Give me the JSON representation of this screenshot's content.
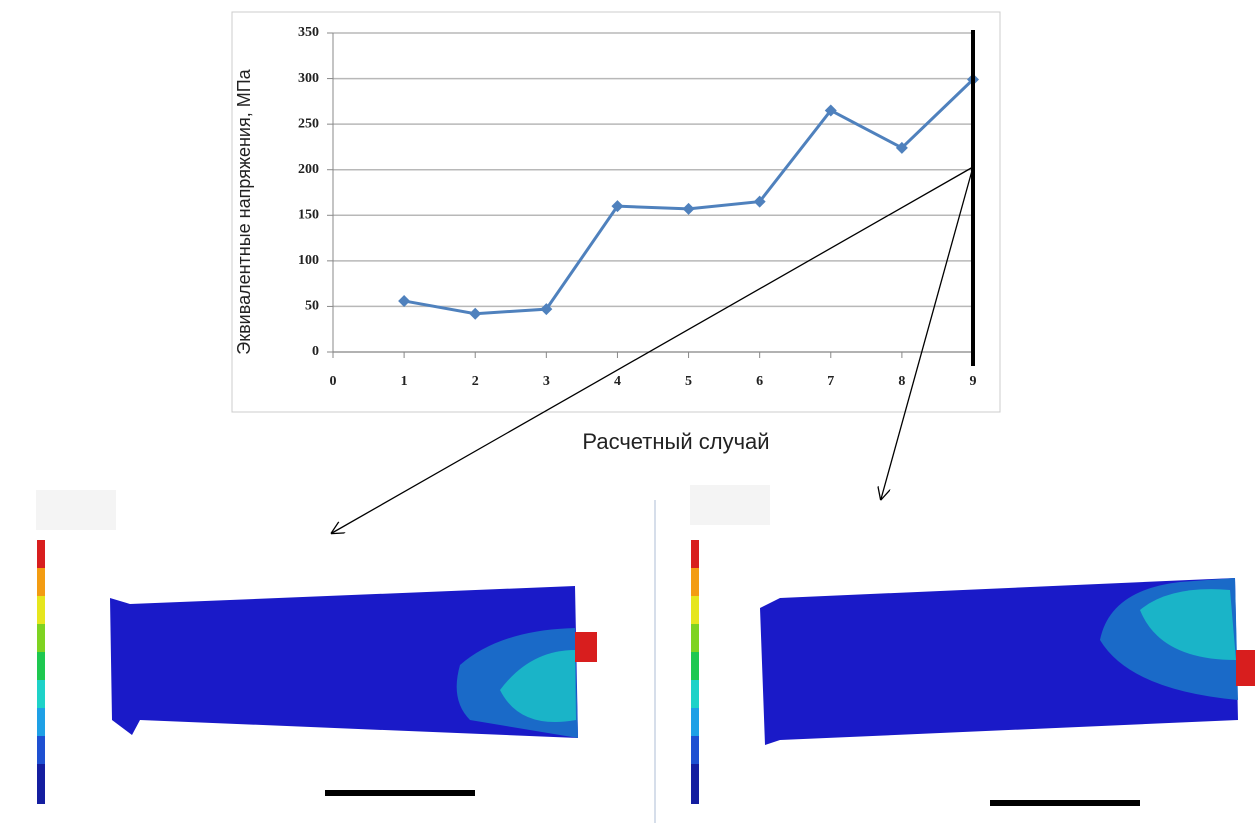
{
  "chart_data": {
    "type": "line",
    "x_axis_label": "Расчетный случай",
    "y_axis_label": "Эквивалентные напряжения, МПа",
    "x": [
      1,
      2,
      3,
      4,
      5,
      6,
      7,
      8,
      9
    ],
    "values": [
      56,
      42,
      47,
      160,
      157,
      165,
      265,
      224,
      299
    ],
    "color": "#4f81bd",
    "xlim": [
      0,
      9
    ],
    "xticks": [
      0,
      1,
      2,
      3,
      4,
      5,
      6,
      7,
      8,
      9
    ],
    "ylim": [
      0,
      350
    ],
    "yticks": [
      0,
      50,
      100,
      150,
      200,
      250,
      300,
      350
    ],
    "grid": true
  }
}
